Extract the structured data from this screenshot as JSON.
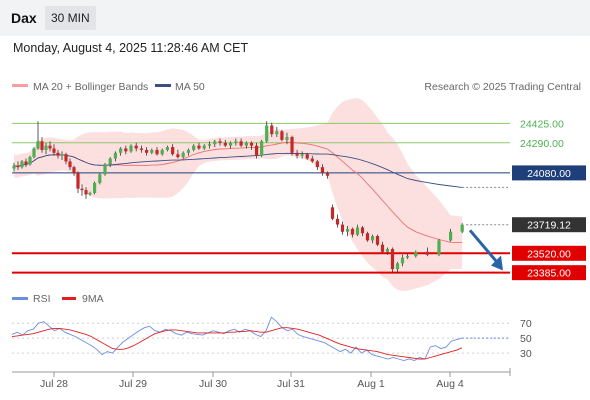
{
  "header": {
    "instrument": "Dax",
    "timeframe": "30 MIN",
    "datetime": "Monday, August 4, 2025 11:28:46 AM CET",
    "credit": "Research © 2025 Trading Central"
  },
  "legend": {
    "ma20": "MA 20 + Bollinger Bands",
    "ma50": "MA 50",
    "rsi": "RSI",
    "ma9": "9MA"
  },
  "colors": {
    "bollinger_fill": "#fbdada",
    "ma20": "#ee6f6f",
    "ma50": "#3a4f86",
    "candle_up": "#4caf50",
    "candle_down": "#c62828",
    "resistance": "#8fc86a",
    "support": "#e00000",
    "pivot": "#1f3f7a",
    "last": "#333333",
    "rsi": "#6b8de3",
    "rsi_ma": "#e02020",
    "arrow": "#2b63a8"
  },
  "chart_data": [
    {
      "type": "candlestick",
      "title": "",
      "y_range": [
        23320,
        24560
      ],
      "x_labels": [
        "Jul 28",
        "Jul 29",
        "Jul 30",
        "Jul 31",
        "Aug 1",
        "Aug 4"
      ],
      "levels": [
        {
          "name": "resistance_2",
          "value": 24425.0,
          "label": "24425.00",
          "kind": "resistance"
        },
        {
          "name": "resistance_1",
          "value": 24290.0,
          "label": "24290.00",
          "kind": "resistance"
        },
        {
          "name": "pivot",
          "value": 24080.0,
          "label": "24080.00",
          "kind": "pivot"
        },
        {
          "name": "last",
          "value": 23719.12,
          "label": "23719.12",
          "kind": "last"
        },
        {
          "name": "support_1",
          "value": 23520.0,
          "label": "23520.00",
          "kind": "support"
        },
        {
          "name": "support_2",
          "value": 23385.0,
          "label": "23385.00",
          "kind": "support"
        }
      ],
      "forecast": {
        "from": 23680,
        "to": 23400,
        "direction": "down"
      },
      "segments": [
        {
          "label": "Jul 28",
          "ohlc": [
            [
              24110,
              24150,
              24090,
              24130
            ],
            [
              24130,
              24160,
              24100,
              24120
            ],
            [
              24120,
              24170,
              24110,
              24160
            ],
            [
              24160,
              24180,
              24120,
              24140
            ],
            [
              24140,
              24200,
              24130,
              24190
            ],
            [
              24190,
              24260,
              24180,
              24250
            ],
            [
              24250,
              24440,
              24240,
              24300
            ],
            [
              24300,
              24330,
              24220,
              24240
            ],
            [
              24240,
              24290,
              24210,
              24270
            ],
            [
              24270,
              24300,
              24230,
              24250
            ],
            [
              24250,
              24280,
              24200,
              24220
            ],
            [
              24220,
              24240,
              24180,
              24200
            ],
            [
              24200,
              24230,
              24170,
              24210
            ],
            [
              24210,
              24220,
              24140,
              24160
            ],
            [
              24160,
              24180,
              24100,
              24120
            ],
            [
              24120,
              24130,
              24060,
              24080
            ],
            [
              24080,
              24090,
              23940,
              23970
            ],
            [
              23970,
              24000,
              23920,
              23960
            ],
            [
              23960,
              23980,
              23900,
              23930
            ],
            [
              23930,
              23950,
              23920,
              23940
            ]
          ]
        },
        {
          "label": "Jul 29",
          "ohlc": [
            [
              23940,
              24020,
              23930,
              24010
            ],
            [
              24010,
              24080,
              24000,
              24070
            ],
            [
              24070,
              24150,
              24060,
              24140
            ],
            [
              24140,
              24190,
              24120,
              24180
            ],
            [
              24180,
              24230,
              24160,
              24220
            ],
            [
              24220,
              24260,
              24200,
              24250
            ],
            [
              24250,
              24270,
              24210,
              24230
            ],
            [
              24230,
              24280,
              24220,
              24270
            ],
            [
              24270,
              24290,
              24230,
              24250
            ],
            [
              24250,
              24270,
              24220,
              24240
            ],
            [
              24240,
              24260,
              24200,
              24220
            ],
            [
              24220,
              24250,
              24210,
              24240
            ],
            [
              24240,
              24260,
              24200,
              24210
            ],
            [
              24210,
              24250,
              24200,
              24240
            ],
            [
              24240,
              24270,
              24230,
              24260
            ]
          ]
        },
        {
          "label": "Jul 30",
          "ohlc": [
            [
              24260,
              24280,
              24200,
              24210
            ],
            [
              24210,
              24240,
              24180,
              24190
            ],
            [
              24190,
              24230,
              24180,
              24220
            ],
            [
              24220,
              24250,
              24200,
              24240
            ],
            [
              24240,
              24280,
              24230,
              24270
            ],
            [
              24270,
              24290,
              24240,
              24250
            ],
            [
              24250,
              24280,
              24240,
              24270
            ],
            [
              24270,
              24300,
              24250,
              24280
            ],
            [
              24280,
              24310,
              24260,
              24300
            ],
            [
              24300,
              24320,
              24270,
              24290
            ],
            [
              24290,
              24310,
              24260,
              24270
            ],
            [
              24270,
              24300,
              24250,
              24290
            ],
            [
              24290,
              24320,
              24270,
              24300
            ],
            [
              24300,
              24320,
              24260,
              24270
            ],
            [
              24270,
              24300,
              24250,
              24290
            ]
          ]
        },
        {
          "label": "Jul 31",
          "ohlc": [
            [
              24290,
              24300,
              24240,
              24270
            ],
            [
              24270,
              24290,
              24180,
              24200
            ],
            [
              24200,
              24310,
              24190,
              24300
            ],
            [
              24300,
              24440,
              24290,
              24410
            ],
            [
              24410,
              24430,
              24330,
              24350
            ],
            [
              24350,
              24400,
              24330,
              24370
            ],
            [
              24370,
              24380,
              24300,
              24310
            ],
            [
              24310,
              24360,
              24280,
              24330
            ],
            [
              24330,
              24340,
              24200,
              24220
            ],
            [
              24220,
              24240,
              24180,
              24200
            ],
            [
              24200,
              24230,
              24180,
              24210
            ],
            [
              24210,
              24220,
              24170,
              24180
            ],
            [
              24180,
              24200,
              24150,
              24160
            ],
            [
              24160,
              24170,
              24100,
              24120
            ],
            [
              24120,
              24140,
              24060,
              24080
            ],
            [
              24080,
              24090,
              24040,
              24060
            ]
          ]
        },
        {
          "label": "Aug 1",
          "ohlc": [
            [
              23840,
              23860,
              23750,
              23760
            ],
            [
              23760,
              23790,
              23700,
              23720
            ],
            [
              23720,
              23740,
              23650,
              23670
            ],
            [
              23670,
              23710,
              23640,
              23690
            ],
            [
              23690,
              23700,
              23630,
              23650
            ],
            [
              23650,
              23720,
              23640,
              23700
            ],
            [
              23700,
              23710,
              23640,
              23660
            ],
            [
              23660,
              23670,
              23600,
              23610
            ],
            [
              23610,
              23650,
              23590,
              23640
            ],
            [
              23640,
              23650,
              23570,
              23580
            ],
            [
              23580,
              23600,
              23520,
              23530
            ],
            [
              23530,
              23560,
              23510,
              23550
            ],
            [
              23550,
              23560,
              23390,
              23410
            ],
            [
              23410,
              23460,
              23380,
              23450
            ],
            [
              23450,
              23510,
              23430,
              23490
            ],
            [
              23490,
              23520,
              23480,
              23500
            ]
          ]
        },
        {
          "label": "Aug 4",
          "ohlc": [
            [
              23500,
              23540,
              23490,
              23530
            ],
            [
              23530,
              23560,
              23500,
              23510
            ],
            [
              23510,
              23620,
              23500,
              23610
            ],
            [
              23610,
              23690,
              23600,
              23670
            ],
            [
              23670,
              23730,
              23660,
              23719
            ]
          ]
        }
      ]
    },
    {
      "type": "line",
      "title": "",
      "y_ticks": [
        70,
        50,
        30
      ],
      "y_range": [
        10,
        85
      ],
      "series": [
        {
          "name": "RSI",
          "values": [
            55,
            58,
            54,
            60,
            62,
            70,
            72,
            66,
            60,
            63,
            58,
            55,
            52,
            48,
            44,
            40,
            35,
            28,
            32,
            30,
            38,
            45,
            50,
            55,
            60,
            64,
            66,
            60,
            58,
            62,
            60,
            56,
            54,
            58,
            56,
            55,
            54,
            57,
            60,
            58,
            56,
            60,
            62,
            58,
            62,
            60,
            55,
            52,
            60,
            78,
            72,
            64,
            60,
            62,
            55,
            52,
            50,
            48,
            46,
            44,
            40,
            36,
            32,
            35,
            30,
            38,
            30,
            34,
            28,
            26,
            24,
            22,
            24,
            22,
            20,
            22,
            20,
            24,
            22,
            38,
            40,
            36,
            38,
            46,
            48,
            50
          ]
        },
        {
          "name": "9MA",
          "values": [
            52,
            53,
            54,
            55,
            56,
            58,
            60,
            62,
            63,
            63,
            62,
            61,
            59,
            57,
            55,
            52,
            48,
            44,
            40,
            36,
            35,
            35,
            37,
            40,
            44,
            48,
            52,
            56,
            58,
            60,
            61,
            61,
            60,
            59,
            58,
            57,
            57,
            57,
            57,
            57,
            57,
            58,
            58,
            59,
            59,
            60,
            59,
            58,
            58,
            60,
            62,
            64,
            64,
            63,
            62,
            60,
            58,
            56,
            54,
            51,
            48,
            45,
            42,
            40,
            38,
            36,
            35,
            34,
            33,
            32,
            30,
            28,
            27,
            26,
            25,
            24,
            23,
            22,
            22,
            24,
            26,
            28,
            30,
            32,
            34,
            37
          ]
        }
      ]
    }
  ]
}
